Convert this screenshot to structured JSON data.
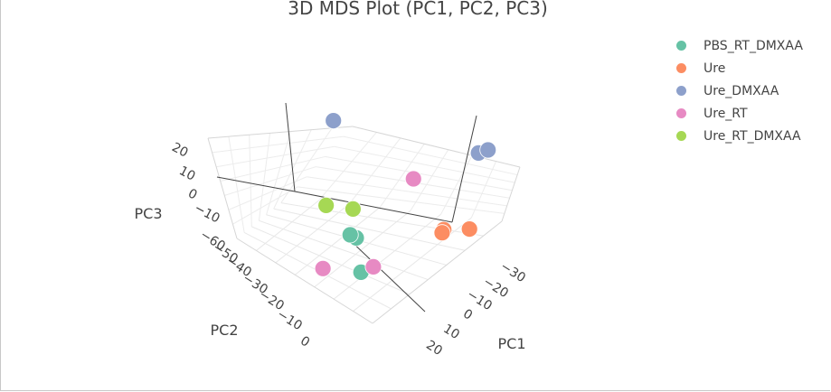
{
  "chart_data": {
    "type": "scatter3d",
    "title": "3D MDS Plot (PC1, PC2, PC3)",
    "axes": {
      "x": {
        "label": "PC1",
        "ticks": [
          "−30",
          "−20",
          "−10",
          "0",
          "10",
          "20"
        ]
      },
      "y": {
        "label": "PC2",
        "ticks": [
          "0",
          "−10",
          "−20",
          "−30",
          "−40",
          "−50",
          "−60"
        ]
      },
      "z": {
        "label": "PC3",
        "ticks": [
          "20",
          "10",
          "0",
          "−10"
        ]
      }
    },
    "grid": true,
    "legend_position": "top-right",
    "series": [
      {
        "name": "PBS_RT_DMXAA",
        "color": "#66c2a5",
        "points": [
          {
            "x": 5,
            "y": -22,
            "z": -14
          },
          {
            "x": 12,
            "y": -15,
            "z": -12
          },
          {
            "x": 16,
            "y": 4,
            "z": -20
          }
        ]
      },
      {
        "name": "Ure",
        "color": "#fc8d62",
        "points": [
          {
            "x": -28,
            "y": -2,
            "z": 2
          },
          {
            "x": -17,
            "y": -1,
            "z": 0
          },
          {
            "x": -16,
            "y": 0,
            "z": -1
          }
        ]
      },
      {
        "name": "Ure_DMXAA",
        "color": "#8da0cb",
        "points": [
          {
            "x": -27,
            "y": -5,
            "z": 28
          },
          {
            "x": -30,
            "y": -4,
            "z": 30
          },
          {
            "x": 6,
            "y": -52,
            "z": 18
          }
        ]
      },
      {
        "name": "Ure_RT",
        "color": "#e78ac3",
        "points": [
          {
            "x": -15,
            "y": -25,
            "z": 10
          },
          {
            "x": 9,
            "y": 0,
            "z": -18
          },
          {
            "x": 22,
            "y": -12,
            "z": -25
          }
        ]
      },
      {
        "name": "Ure_RT_DMXAA",
        "color": "#a6d854",
        "points": [
          {
            "x": 6,
            "y": -45,
            "z": -10
          },
          {
            "x": 10,
            "y": -20,
            "z": -4
          }
        ]
      }
    ]
  }
}
